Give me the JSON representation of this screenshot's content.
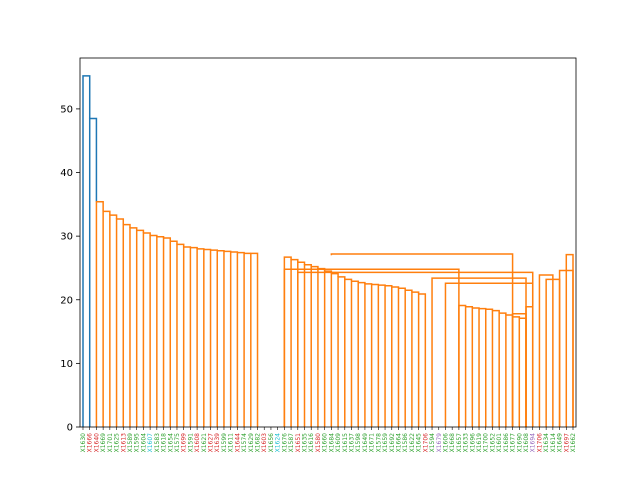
{
  "chart_data": {
    "type": "dendrogram",
    "title": "",
    "xlabel": "",
    "ylabel": "",
    "ylim": [
      0,
      58
    ],
    "yticks": [
      0,
      10,
      20,
      30,
      40,
      50
    ],
    "grid": false,
    "colors": {
      "link_top": "#1f77b4",
      "link_cluster": "#ff7f0e",
      "leaf_green": "#2ca02c",
      "leaf_red": "#d62728",
      "leaf_cyan": "#17becf",
      "leaf_purple": "#9467bd",
      "axis": "#000000"
    },
    "leaves": [
      {
        "label": "X1630",
        "color": "#2ca02c"
      },
      {
        "label": "X1666",
        "color": "#d62728"
      },
      {
        "label": "X1640",
        "color": "#d62728"
      },
      {
        "label": "X1669",
        "color": "#2ca02c"
      },
      {
        "label": "X1701",
        "color": "#2ca02c"
      },
      {
        "label": "X1625",
        "color": "#2ca02c"
      },
      {
        "label": "X1613",
        "color": "#d62728"
      },
      {
        "label": "X1589",
        "color": "#2ca02c"
      },
      {
        "label": "X1595",
        "color": "#2ca02c"
      },
      {
        "label": "X1604",
        "color": "#2ca02c"
      },
      {
        "label": "X1607",
        "color": "#17becf"
      },
      {
        "label": "X1583",
        "color": "#2ca02c"
      },
      {
        "label": "X1618",
        "color": "#2ca02c"
      },
      {
        "label": "X1654",
        "color": "#2ca02c"
      },
      {
        "label": "X1575",
        "color": "#2ca02c"
      },
      {
        "label": "X1699",
        "color": "#d62728"
      },
      {
        "label": "X1591",
        "color": "#2ca02c"
      },
      {
        "label": "X1608",
        "color": "#d62728"
      },
      {
        "label": "X1621",
        "color": "#2ca02c"
      },
      {
        "label": "X1627",
        "color": "#d62728"
      },
      {
        "label": "X1639",
        "color": "#d62728"
      },
      {
        "label": "X1599",
        "color": "#2ca02c"
      },
      {
        "label": "X1611",
        "color": "#2ca02c"
      },
      {
        "label": "X1644",
        "color": "#d62728"
      },
      {
        "label": "X1574",
        "color": "#2ca02c"
      },
      {
        "label": "X1629",
        "color": "#2ca02c"
      },
      {
        "label": "X1682",
        "color": "#2ca02c"
      },
      {
        "label": "X1603",
        "color": "#d62728"
      },
      {
        "label": "X1656",
        "color": "#2ca02c"
      },
      {
        "label": "X1624",
        "color": "#17becf"
      },
      {
        "label": "X1676",
        "color": "#2ca02c"
      },
      {
        "label": "X1587",
        "color": "#2ca02c"
      },
      {
        "label": "X1651",
        "color": "#d62728"
      },
      {
        "label": "X1635",
        "color": "#2ca02c"
      },
      {
        "label": "X1616",
        "color": "#2ca02c"
      },
      {
        "label": "X1580",
        "color": "#d62728"
      },
      {
        "label": "X1660",
        "color": "#2ca02c"
      },
      {
        "label": "X1684",
        "color": "#2ca02c"
      },
      {
        "label": "X1609",
        "color": "#2ca02c"
      },
      {
        "label": "X1615",
        "color": "#2ca02c"
      },
      {
        "label": "X1637",
        "color": "#2ca02c"
      },
      {
        "label": "X1598",
        "color": "#2ca02c"
      },
      {
        "label": "X1649",
        "color": "#2ca02c"
      },
      {
        "label": "X1671",
        "color": "#2ca02c"
      },
      {
        "label": "X1578",
        "color": "#2ca02c"
      },
      {
        "label": "X1659",
        "color": "#2ca02c"
      },
      {
        "label": "X1692",
        "color": "#2ca02c"
      },
      {
        "label": "X1664",
        "color": "#2ca02c"
      },
      {
        "label": "X1586",
        "color": "#2ca02c"
      },
      {
        "label": "X1622",
        "color": "#2ca02c"
      },
      {
        "label": "X1645",
        "color": "#2ca02c"
      },
      {
        "label": "X1706",
        "color": "#d62728"
      },
      {
        "label": "X1594",
        "color": "#2ca02c"
      },
      {
        "label": "X1679",
        "color": "#9467bd"
      },
      {
        "label": "X1606",
        "color": "#2ca02c"
      },
      {
        "label": "X1668",
        "color": "#2ca02c"
      },
      {
        "label": "X1657",
        "color": "#2ca02c"
      },
      {
        "label": "X1633",
        "color": "#2ca02c"
      },
      {
        "label": "X1696",
        "color": "#2ca02c"
      },
      {
        "label": "X1619",
        "color": "#2ca02c"
      },
      {
        "label": "X1700",
        "color": "#2ca02c"
      },
      {
        "label": "X1652",
        "color": "#2ca02c"
      },
      {
        "label": "X1601",
        "color": "#2ca02c"
      },
      {
        "label": "X1686",
        "color": "#2ca02c"
      },
      {
        "label": "X1677",
        "color": "#2ca02c"
      },
      {
        "label": "X1690",
        "color": "#2ca02c"
      },
      {
        "label": "X1608",
        "color": "#2ca02c"
      },
      {
        "label": "X1694",
        "color": "#9467bd"
      },
      {
        "label": "X1706",
        "color": "#d62728"
      },
      {
        "label": "X1634",
        "color": "#2ca02c"
      },
      {
        "label": "X1614",
        "color": "#2ca02c"
      },
      {
        "label": "X1649",
        "color": "#2ca02c"
      },
      {
        "label": "X1697",
        "color": "#d62728"
      },
      {
        "label": "X1662",
        "color": "#2ca02c"
      }
    ],
    "main_cluster": {
      "root_height": 35.4,
      "root_span": [
        3,
        6
      ],
      "chain_heights": [
        35.4,
        33.9,
        33.3,
        32.7,
        31.8,
        31.3,
        30.9,
        30.5,
        30.1,
        29.9,
        29.7,
        29.2,
        28.7,
        28.3,
        28.2,
        28.0,
        27.9,
        27.8,
        27.7,
        27.6,
        27.5,
        27.4,
        27.3,
        27.3
      ],
      "chain_end_leaf": 27,
      "top_merge": {
        "height": 27.3,
        "from": 24,
        "to": 43
      },
      "branches": [
        {
          "name": "leaves-a",
          "height": 27.2,
          "span": [
            37,
            64
          ],
          "from_level": 27.0
        },
        {
          "name": "leaves-b",
          "height": 24.8,
          "span": [
            30,
            56
          ]
        },
        {
          "name": "leaves-c",
          "height": 24.3,
          "span": [
            32,
            67
          ]
        },
        {
          "name": "leaves-d",
          "height": 23.4,
          "span": [
            52,
            66
          ]
        },
        {
          "name": "leaves-e",
          "height": 22.6,
          "span": [
            54,
            67
          ]
        }
      ],
      "mid_chain_heights": [
        26.7,
        26.3,
        25.9,
        25.5,
        25.2,
        24.9,
        24.5,
        24.1,
        23.6,
        23.2,
        22.9,
        22.7,
        22.5,
        22.4,
        22.3,
        22.2,
        22.0,
        21.8,
        21.5,
        21.2,
        20.9
      ],
      "low_chain_heights": [
        19.1,
        18.9,
        18.7,
        18.6,
        18.5,
        18.3,
        17.9,
        17.6,
        17.3,
        17.1
      ],
      "right_group": [
        {
          "span": [
            68,
            70
          ],
          "height": 23.9
        },
        {
          "span": [
            69,
            71
          ],
          "height": 23.2
        },
        {
          "span": [
            71,
            73
          ],
          "height": 24.6
        },
        {
          "span": [
            72,
            73
          ],
          "height": 27.1
        },
        {
          "span": [
            66,
            67
          ],
          "height": 18.9
        },
        {
          "span": [
            64,
            66
          ],
          "height": 17.8
        }
      ]
    },
    "top_links": [
      {
        "left": 0,
        "right": 1,
        "height": 55.2,
        "left_base": 0,
        "right_base": 48.5
      },
      {
        "left": 1,
        "right": 2,
        "height": 48.5,
        "left_base": 0,
        "right_base": 35.4
      }
    ]
  }
}
